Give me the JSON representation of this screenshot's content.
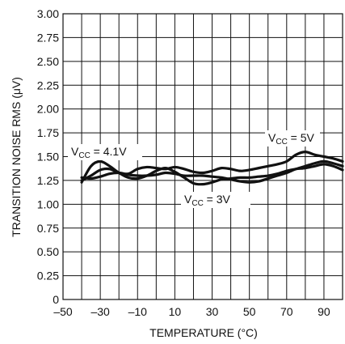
{
  "chart_data": {
    "type": "line",
    "xlabel": "TEMPERATURE (°C)",
    "ylabel": "TRANSITION NOISE RMS (μV)",
    "xlim": [
      -50,
      100
    ],
    "ylim": [
      0,
      3.0
    ],
    "x_ticks": [
      -50,
      -30,
      -10,
      10,
      30,
      50,
      70,
      90
    ],
    "x_tick_labels": [
      "–50",
      "–30",
      "–10",
      "10",
      "30",
      "50",
      "70",
      "90"
    ],
    "y_ticks": [
      0,
      0.25,
      0.5,
      0.75,
      1.0,
      1.25,
      1.5,
      1.75,
      2.0,
      2.25,
      2.5,
      2.75,
      3.0
    ],
    "y_tick_labels": [
      "0",
      "0.25",
      "0.50",
      "0.75",
      "1.00",
      "1.25",
      "1.50",
      "1.75",
      "2.00",
      "2.25",
      "2.50",
      "2.75",
      "3.00"
    ],
    "grid": true,
    "series": [
      {
        "name": "VCC = 4.1V",
        "label_main": "V",
        "label_sub": "CC",
        "label_rest": " = 4.1V",
        "x": [
          -40,
          -35,
          -30,
          -25,
          -20,
          -15,
          -10,
          -5,
          0,
          5,
          10,
          15,
          20,
          25,
          30,
          35,
          40,
          45,
          50,
          55,
          60,
          65,
          70,
          75,
          80,
          85,
          90,
          95,
          100
        ],
        "y": [
          1.23,
          1.4,
          1.45,
          1.4,
          1.33,
          1.28,
          1.27,
          1.3,
          1.35,
          1.38,
          1.34,
          1.28,
          1.22,
          1.21,
          1.23,
          1.26,
          1.27,
          1.28,
          1.28,
          1.29,
          1.3,
          1.32,
          1.35,
          1.37,
          1.38,
          1.4,
          1.42,
          1.4,
          1.36
        ]
      },
      {
        "name": "VCC = 5V",
        "label_main": "V",
        "label_sub": "CC",
        "label_rest": " = 5V",
        "x": [
          -40,
          -35,
          -30,
          -25,
          -20,
          -15,
          -10,
          -5,
          0,
          5,
          10,
          15,
          20,
          25,
          30,
          35,
          40,
          45,
          50,
          55,
          60,
          65,
          70,
          75,
          80,
          85,
          90,
          95,
          100
        ],
        "y": [
          1.25,
          1.3,
          1.36,
          1.37,
          1.33,
          1.32,
          1.37,
          1.39,
          1.38,
          1.37,
          1.39,
          1.37,
          1.34,
          1.33,
          1.35,
          1.38,
          1.37,
          1.35,
          1.36,
          1.38,
          1.4,
          1.42,
          1.45,
          1.52,
          1.55,
          1.52,
          1.5,
          1.48,
          1.45
        ]
      },
      {
        "name": "VCC = 3V",
        "label_main": "V",
        "label_sub": "CC",
        "label_rest": " = 3V",
        "x": [
          -40,
          -35,
          -30,
          -25,
          -20,
          -15,
          -10,
          -5,
          0,
          5,
          10,
          15,
          20,
          25,
          30,
          35,
          40,
          45,
          50,
          55,
          60,
          65,
          70,
          75,
          80,
          85,
          90,
          95,
          100
        ],
        "y": [
          1.28,
          1.27,
          1.29,
          1.32,
          1.33,
          1.31,
          1.3,
          1.3,
          1.31,
          1.33,
          1.32,
          1.3,
          1.3,
          1.3,
          1.29,
          1.28,
          1.26,
          1.24,
          1.23,
          1.24,
          1.27,
          1.3,
          1.33,
          1.37,
          1.4,
          1.43,
          1.45,
          1.43,
          1.4
        ]
      }
    ]
  }
}
